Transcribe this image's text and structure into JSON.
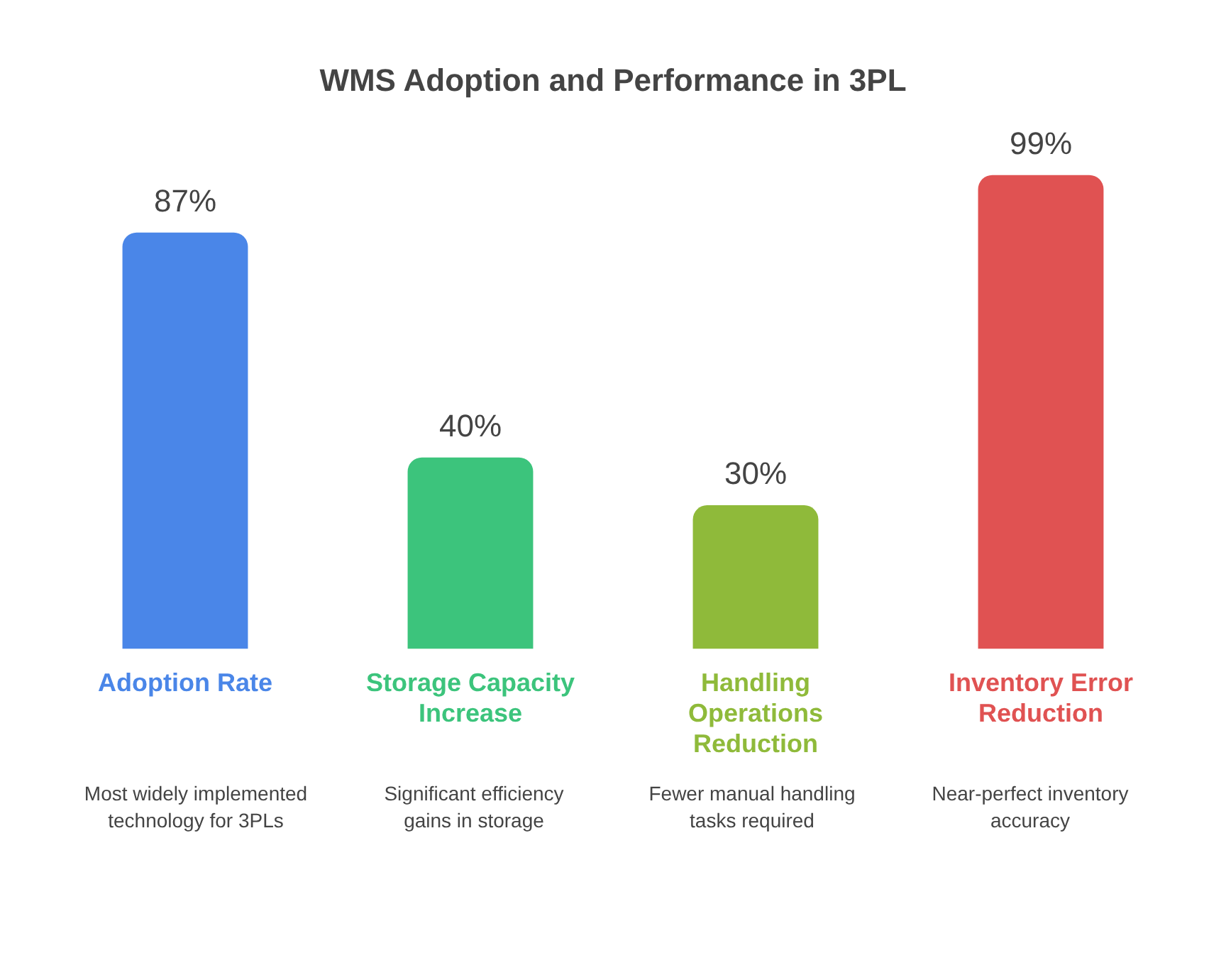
{
  "chart_data": {
    "type": "bar",
    "title": "WMS Adoption and Performance in 3PL",
    "categories": [
      "Adoption Rate",
      "Storage Capacity Increase",
      "Handling Operations Reduction",
      "Inventory Error Reduction"
    ],
    "values": [
      87,
      40,
      30,
      99
    ],
    "value_labels": [
      "87%",
      "40%",
      "30%",
      "99%"
    ],
    "colors": [
      "#4a86e8",
      "#3cc47c",
      "#8fba3a",
      "#e05252"
    ],
    "annotations": [
      "Most widely implemented technology for 3PLs",
      "Significant efficiency gains in storage",
      "Fewer manual handling tasks required",
      "Near-perfect inventory accuracy"
    ],
    "grid": false,
    "legend": false
  }
}
